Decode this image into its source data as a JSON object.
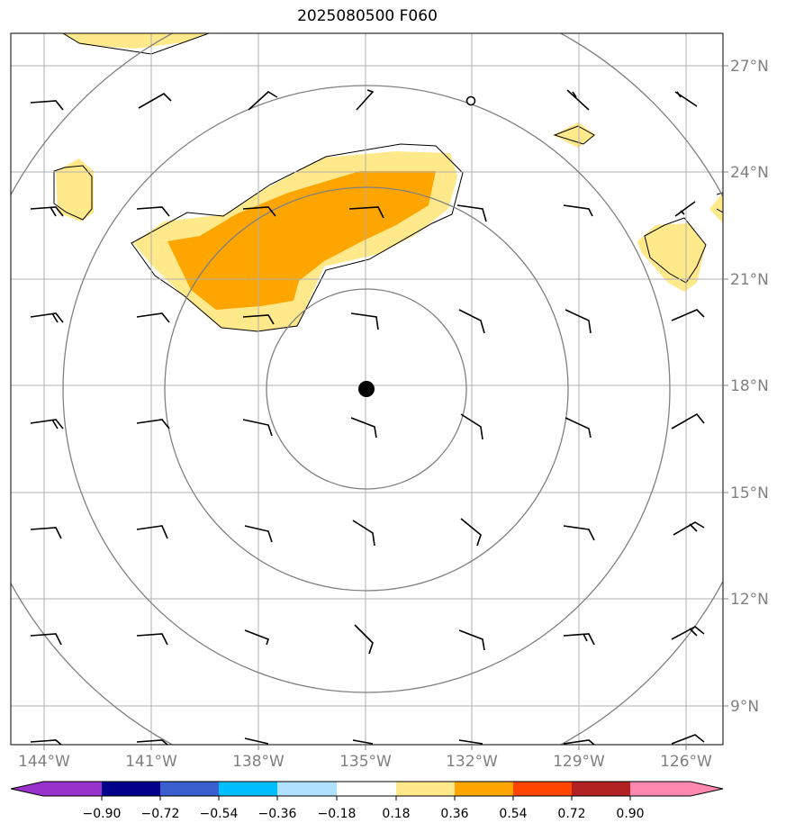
{
  "title": "2025080500 F060",
  "map": {
    "lon_labels": [
      "144°W",
      "141°W",
      "138°W",
      "135°W",
      "132°W",
      "129°W",
      "126°W"
    ],
    "lat_labels": [
      "27°N",
      "24°N",
      "21°N",
      "18°N",
      "15°N",
      "12°N",
      "9°N"
    ],
    "lon_values": [
      -144,
      -141,
      -138,
      -135,
      -132,
      -129,
      -126
    ],
    "lat_values": [
      27,
      24,
      21,
      18,
      15,
      12,
      9
    ],
    "center": {
      "lon": -135,
      "lat": 18
    },
    "field_colors": {
      "light": "#ffe98a",
      "dark": "#ffa500"
    }
  },
  "colorbar": {
    "ticks": [
      "−0.90",
      "−0.72",
      "−0.54",
      "−0.36",
      "−0.18",
      "0.18",
      "0.36",
      "0.54",
      "0.72",
      "0.90"
    ],
    "colors": [
      "#9932cc",
      "#00008b",
      "#3a5fcd",
      "#00bfff",
      "#b0e0ff",
      "#ffffff",
      "#ffe98a",
      "#ffa500",
      "#ff4500",
      "#b22222",
      "#ff88b0"
    ]
  }
}
